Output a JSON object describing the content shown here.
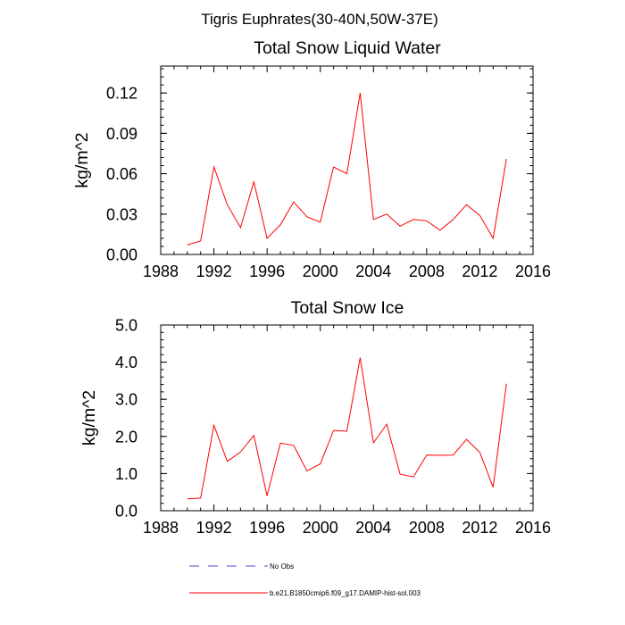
{
  "figure_title": "Tigris Euphrates(30-40N,50W-37E)",
  "colors": {
    "model": "#ff0000",
    "obs": "#4b4bc8",
    "axis": "#000000"
  },
  "legend": {
    "obs_label": "No Obs",
    "model_label": "b.e21.B1850cmip6.f09_g17.DAMIP-hist-sol.003"
  },
  "chart_data": [
    {
      "type": "line",
      "title": "Total Snow Liquid Water",
      "xlabel": "",
      "ylabel": "kg/m^2",
      "xlim": [
        1988,
        2016
      ],
      "ylim": [
        0,
        0.14
      ],
      "x_ticks": [
        1988,
        1992,
        1996,
        2000,
        2004,
        2008,
        2012,
        2016
      ],
      "x_tick_labels": [
        "1988",
        "1992",
        "1996",
        "2000",
        "2004",
        "2008",
        "2012",
        "2016"
      ],
      "y_ticks": [
        0,
        0.03,
        0.06,
        0.09,
        0.12
      ],
      "y_tick_labels": [
        "0.00",
        "0.03",
        "0.06",
        "0.09",
        "0.12"
      ],
      "grid": false,
      "series": [
        {
          "name": "b.e21.B1850cmip6.f09_g17.DAMIP-hist-sol.003",
          "color": "#ff0000",
          "x": [
            1990,
            1991,
            1992,
            1993,
            1994,
            1995,
            1996,
            1997,
            1998,
            1999,
            2000,
            2001,
            2002,
            2003,
            2004,
            2005,
            2006,
            2007,
            2008,
            2009,
            2010,
            2011,
            2012,
            2013,
            2014
          ],
          "y": [
            0.007,
            0.01,
            0.065,
            0.037,
            0.02,
            0.054,
            0.012,
            0.022,
            0.039,
            0.028,
            0.024,
            0.065,
            0.06,
            0.12,
            0.026,
            0.03,
            0.021,
            0.026,
            0.025,
            0.018,
            0.026,
            0.037,
            0.029,
            0.012,
            0.071
          ]
        }
      ]
    },
    {
      "type": "line",
      "title": "Total Snow Ice",
      "xlabel": "",
      "ylabel": "kg/m^2",
      "xlim": [
        1988,
        2016
      ],
      "ylim": [
        0,
        5.0
      ],
      "x_ticks": [
        1988,
        1992,
        1996,
        2000,
        2004,
        2008,
        2012,
        2016
      ],
      "x_tick_labels": [
        "1988",
        "1992",
        "1996",
        "2000",
        "2004",
        "2008",
        "2012",
        "2016"
      ],
      "y_ticks": [
        0,
        1,
        2,
        3,
        4,
        5
      ],
      "y_tick_labels": [
        "0.0",
        "1.0",
        "2.0",
        "3.0",
        "4.0",
        "5.0"
      ],
      "grid": false,
      "series": [
        {
          "name": "b.e21.B1850cmip6.f09_g17.DAMIP-hist-sol.003",
          "color": "#ff0000",
          "x": [
            1990,
            1991,
            1992,
            1993,
            1994,
            1995,
            1996,
            1997,
            1998,
            1999,
            2000,
            2001,
            2002,
            2003,
            2004,
            2005,
            2006,
            2007,
            2008,
            2009,
            2010,
            2011,
            2012,
            2013,
            2014
          ],
          "y": [
            0.32,
            0.34,
            2.3,
            1.33,
            1.58,
            2.03,
            0.4,
            1.82,
            1.76,
            1.07,
            1.26,
            2.16,
            2.14,
            4.12,
            1.83,
            2.33,
            0.98,
            0.91,
            1.5,
            1.49,
            1.5,
            1.92,
            1.57,
            0.63,
            3.42
          ]
        }
      ]
    }
  ]
}
